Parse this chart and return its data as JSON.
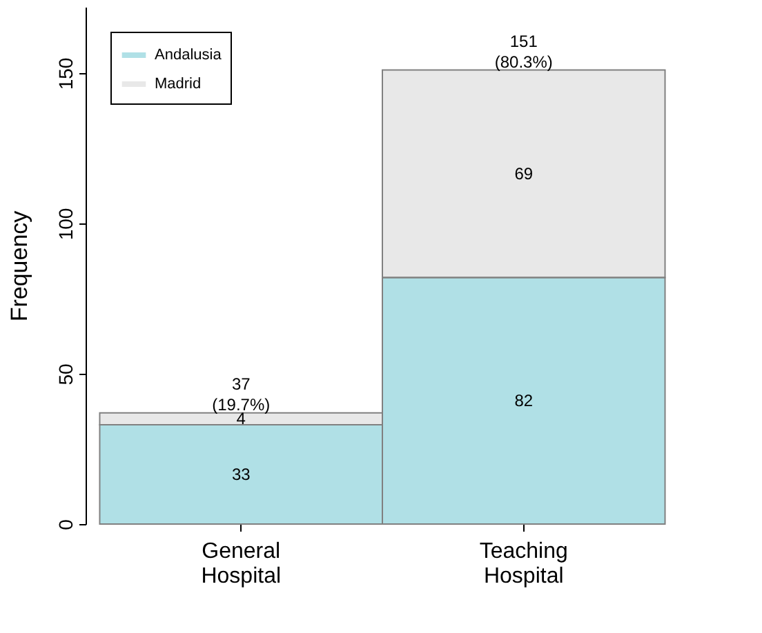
{
  "chart_data": {
    "type": "bar",
    "ylabel": "Frequency",
    "categories": [
      "General\nHospital",
      "Teaching\nHospital"
    ],
    "series": [
      {
        "name": "Andalusia",
        "color": "#b0e0e6",
        "values": [
          33,
          82
        ]
      },
      {
        "name": "Madrid",
        "color": "#e8e8e8",
        "values": [
          4,
          69
        ]
      }
    ],
    "stacked": true,
    "data_labels": true,
    "totals": [
      "37\n(19.7%)",
      "151\n(80.3%)"
    ],
    "ylim": [
      0,
      172
    ],
    "yticks": [
      0,
      50,
      100,
      150
    ],
    "grid": false,
    "legend": "top left"
  }
}
